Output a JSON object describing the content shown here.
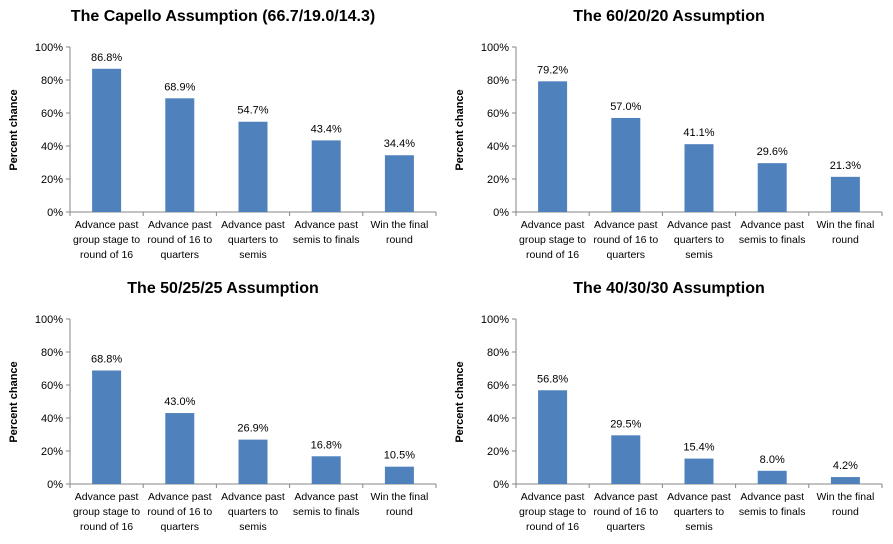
{
  "chart_data": [
    {
      "type": "bar",
      "title": "The Capello Assumption (66.7/19.0/14.3)",
      "ylabel": "Percent chance",
      "ylim": [
        0,
        100
      ],
      "yticks": [
        "0%",
        "20%",
        "40%",
        "60%",
        "80%",
        "100%"
      ],
      "categories": [
        [
          "Advance past",
          "group stage to",
          "round of 16"
        ],
        [
          "Advance past",
          "round of 16 to",
          "quarters"
        ],
        [
          "Advance past",
          "quarters to",
          "semis"
        ],
        [
          "Advance past",
          "semis to finals"
        ],
        [
          "Win the final",
          "round"
        ]
      ],
      "values": [
        86.8,
        68.9,
        54.7,
        43.4,
        34.4
      ],
      "labels": [
        "86.8%",
        "68.9%",
        "54.7%",
        "43.4%",
        "34.4%"
      ],
      "bar_color": "#4F81BD"
    },
    {
      "type": "bar",
      "title": "The 60/20/20 Assumption",
      "ylabel": "Percent chance",
      "ylim": [
        0,
        100
      ],
      "yticks": [
        "0%",
        "20%",
        "40%",
        "60%",
        "80%",
        "100%"
      ],
      "categories": [
        [
          "Advance past",
          "group stage to",
          "round of 16"
        ],
        [
          "Advance past",
          "round of 16 to",
          "quarters"
        ],
        [
          "Advance past",
          "quarters to",
          "semis"
        ],
        [
          "Advance past",
          "semis to finals"
        ],
        [
          "Win the final",
          "round"
        ]
      ],
      "values": [
        79.2,
        57.0,
        41.1,
        29.6,
        21.3
      ],
      "labels": [
        "79.2%",
        "57.0%",
        "41.1%",
        "29.6%",
        "21.3%"
      ],
      "bar_color": "#4F81BD"
    },
    {
      "type": "bar",
      "title": "The 50/25/25 Assumption",
      "ylabel": "Percent chance",
      "ylim": [
        0,
        100
      ],
      "yticks": [
        "0%",
        "20%",
        "40%",
        "60%",
        "80%",
        "100%"
      ],
      "categories": [
        [
          "Advance past",
          "group stage to",
          "round of 16"
        ],
        [
          "Advance past",
          "round of 16 to",
          "quarters"
        ],
        [
          "Advance past",
          "quarters to",
          "semis"
        ],
        [
          "Advance past",
          "semis to finals"
        ],
        [
          "Win the final",
          "round"
        ]
      ],
      "values": [
        68.8,
        43.0,
        26.9,
        16.8,
        10.5
      ],
      "labels": [
        "68.8%",
        "43.0%",
        "26.9%",
        "16.8%",
        "10.5%"
      ],
      "bar_color": "#4F81BD"
    },
    {
      "type": "bar",
      "title": "The 40/30/30 Assumption",
      "ylabel": "Percent chance",
      "ylim": [
        0,
        100
      ],
      "yticks": [
        "0%",
        "20%",
        "40%",
        "60%",
        "80%",
        "100%"
      ],
      "categories": [
        [
          "Advance past",
          "group stage to",
          "round of 16"
        ],
        [
          "Advance past",
          "round of 16 to",
          "quarters"
        ],
        [
          "Advance past",
          "quarters to",
          "semis"
        ],
        [
          "Advance past",
          "semis to finals"
        ],
        [
          "Win the final",
          "round"
        ]
      ],
      "values": [
        56.8,
        29.5,
        15.4,
        8.0,
        4.2
      ],
      "labels": [
        "56.8%",
        "29.5%",
        "15.4%",
        "8.0%",
        "4.2%"
      ],
      "bar_color": "#4F81BD"
    }
  ]
}
